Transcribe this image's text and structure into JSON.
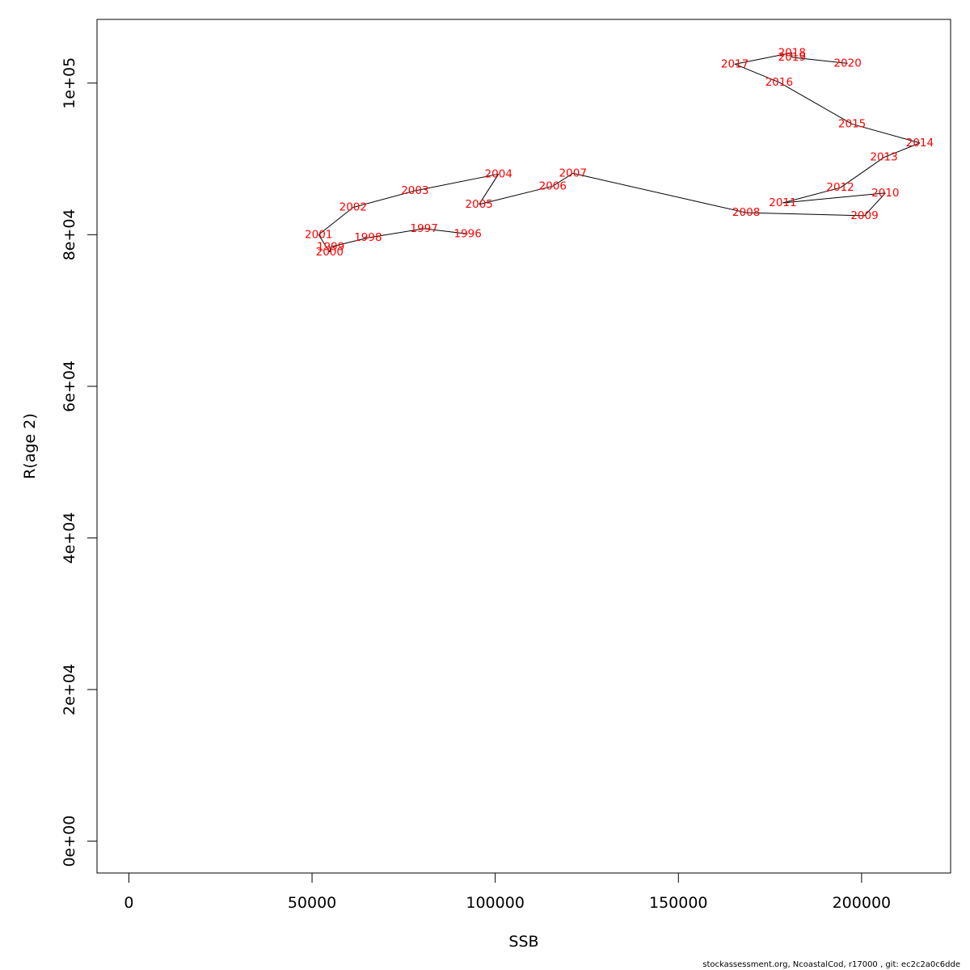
{
  "chart_data": {
    "type": "line",
    "title": "",
    "xlabel": "SSB",
    "ylabel": "R(age 2)",
    "xlim": [
      -8700,
      224300
    ],
    "ylim": [
      -4200,
      108400
    ],
    "grid": false,
    "x_ticks": [
      {
        "value": 0,
        "label": "0"
      },
      {
        "value": 50000,
        "label": "50000"
      },
      {
        "value": 100000,
        "label": "100000"
      },
      {
        "value": 150000,
        "label": "150000"
      },
      {
        "value": 200000,
        "label": "200000"
      }
    ],
    "y_ticks": [
      {
        "value": 0,
        "label": "0e+00"
      },
      {
        "value": 20000,
        "label": "2e+04"
      },
      {
        "value": 40000,
        "label": "4e+04"
      },
      {
        "value": 60000,
        "label": "6e+04"
      },
      {
        "value": 80000,
        "label": "8e+04"
      },
      {
        "value": 100000,
        "label": "1e+05"
      }
    ],
    "series": [
      {
        "points": [
          {
            "label": "1996",
            "x": 92500,
            "y": 80100
          },
          {
            "label": "1997",
            "x": 80600,
            "y": 80800
          },
          {
            "label": "1998",
            "x": 65300,
            "y": 79600
          },
          {
            "label": "1999",
            "x": 55100,
            "y": 78400
          },
          {
            "label": "2000",
            "x": 54800,
            "y": 77700
          },
          {
            "label": "2001",
            "x": 51800,
            "y": 80000
          },
          {
            "label": "2002",
            "x": 61200,
            "y": 83600
          },
          {
            "label": "2003",
            "x": 78100,
            "y": 85800
          },
          {
            "label": "2004",
            "x": 100900,
            "y": 88000
          },
          {
            "label": "2005",
            "x": 95600,
            "y": 84000
          },
          {
            "label": "2006",
            "x": 115700,
            "y": 86400
          },
          {
            "label": "2007",
            "x": 121200,
            "y": 88100
          },
          {
            "label": "2008",
            "x": 168500,
            "y": 82900
          },
          {
            "label": "2009",
            "x": 200800,
            "y": 82500
          },
          {
            "label": "2010",
            "x": 206500,
            "y": 85500
          },
          {
            "label": "2011",
            "x": 178500,
            "y": 84200
          },
          {
            "label": "2012",
            "x": 194200,
            "y": 86200
          },
          {
            "label": "2013",
            "x": 206100,
            "y": 90200
          },
          {
            "label": "2014",
            "x": 215900,
            "y": 92100
          },
          {
            "label": "2015",
            "x": 197400,
            "y": 94600
          },
          {
            "label": "2016",
            "x": 177500,
            "y": 100100
          },
          {
            "label": "2017",
            "x": 165400,
            "y": 102500
          },
          {
            "label": "2018",
            "x": 181000,
            "y": 104000
          },
          {
            "label": "2019",
            "x": 181000,
            "y": 103400
          },
          {
            "label": "2020",
            "x": 196200,
            "y": 102600
          }
        ]
      }
    ]
  },
  "footer": "stockassessment.org, NcoastalCod, r17000 , git: ec2c2a0c6dde"
}
